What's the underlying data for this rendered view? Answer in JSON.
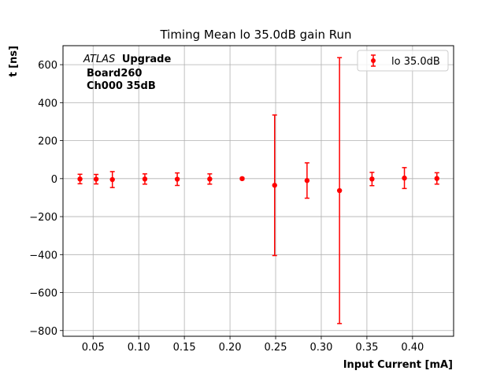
{
  "chart_data": {
    "type": "scatter",
    "title": "Timing Mean lo 35.0dB gain Run",
    "xlabel": "Input Current [mA]",
    "ylabel": "t [ns]",
    "xlim": [
      0.017,
      0.445
    ],
    "ylim": [
      -830,
      700
    ],
    "xticks": [
      0.05,
      0.1,
      0.15,
      0.2,
      0.25,
      0.3,
      0.35,
      0.4
    ],
    "xtick_labels": [
      "0.05",
      "0.10",
      "0.15",
      "0.20",
      "0.25",
      "0.30",
      "0.35",
      "0.40"
    ],
    "yticks": [
      -800,
      -600,
      -400,
      -200,
      0,
      200,
      400,
      600
    ],
    "ytick_labels": [
      "−800",
      "−600",
      "−400",
      "−200",
      "0",
      "200",
      "400",
      "600"
    ],
    "grid": true,
    "legend_position": "top-right",
    "annotation": {
      "italic_part": "ATLAS",
      "bold_part": "Upgrade",
      "line2": "Board260",
      "line3": "Ch000 35dB"
    },
    "series": [
      {
        "name": "lo 35.0dB",
        "color": "#ff0000",
        "marker": "circle",
        "x": [
          0.0356,
          0.0533,
          0.0711,
          0.1067,
          0.1422,
          0.1778,
          0.2133,
          0.2489,
          0.2844,
          0.32,
          0.3556,
          0.3911,
          0.4267
        ],
        "y": [
          -2,
          -3,
          -5,
          -2,
          -3,
          -2,
          0,
          -35,
          -10,
          -63,
          -2,
          3,
          1
        ],
        "yerr": [
          25,
          25,
          42,
          27,
          33,
          27,
          5,
          370,
          93,
          700,
          35,
          55,
          30
        ]
      }
    ]
  }
}
